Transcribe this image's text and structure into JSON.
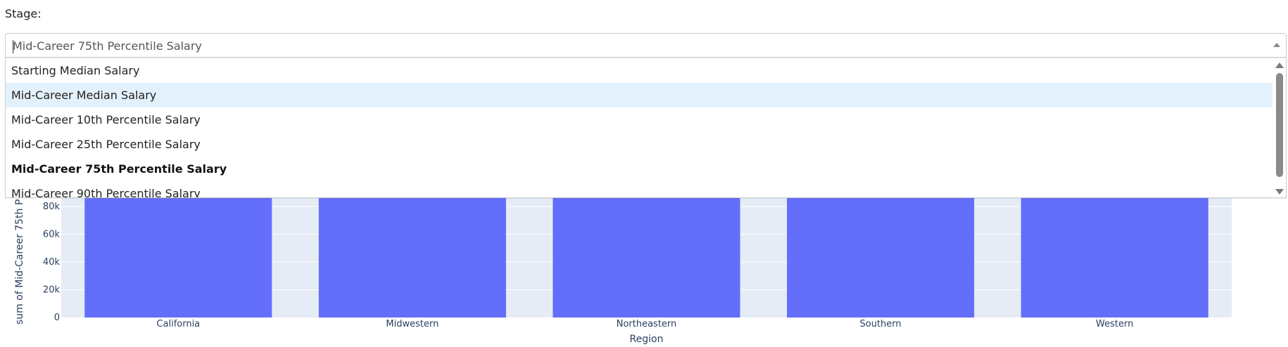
{
  "stage_label": "Stage:",
  "dropdown": {
    "value": "Mid-Career 75th Percentile Salary",
    "options": [
      {
        "label": "Starting Median Salary"
      },
      {
        "label": "Mid-Career Median Salary"
      },
      {
        "label": "Mid-Career 10th Percentile Salary"
      },
      {
        "label": "Mid-Career 25th Percentile Salary"
      },
      {
        "label": "Mid-Career 75th Percentile Salary"
      },
      {
        "label": "Mid-Career 90th Percentile Salary"
      }
    ],
    "hovered_option": "Mid-Career Median Salary",
    "selected_option": "Mid-Career 75th Percentile Salary"
  },
  "chart_data": {
    "type": "bar",
    "categories": [
      "California",
      "Midwestern",
      "Northeastern",
      "Southern",
      "Western"
    ],
    "xlabel": "Region",
    "ylabel": "sum of Mid-Career 75th P",
    "yticks": [
      {
        "value": 0,
        "label": "0"
      },
      {
        "value": 20000,
        "label": "20k"
      },
      {
        "value": 40000,
        "label": "40k"
      },
      {
        "value": 60000,
        "label": "60k"
      },
      {
        "value": 80000,
        "label": "80k"
      }
    ],
    "visible_ylim": [
      0,
      80000
    ],
    "bar_color": "#636efa",
    "plot_bg": "#e5ecf6",
    "grid": true
  }
}
